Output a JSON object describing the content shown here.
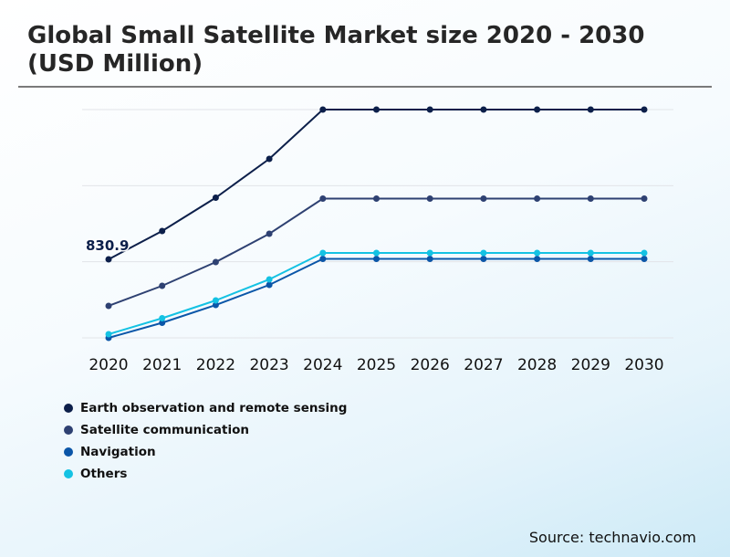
{
  "chart_data": {
    "type": "line",
    "title": "Global Small Satellite Market size 2020 - 2030 (USD Million)",
    "xlabel": "",
    "ylabel": "",
    "categories": [
      "2020",
      "2021",
      "2022",
      "2023",
      "2024",
      "2025",
      "2026",
      "2027",
      "2028",
      "2029",
      "2030"
    ],
    "ylim": [
      521.9,
      1420.2
    ],
    "grid": true,
    "legend_position": "bottom-left",
    "annotations": [
      {
        "series": 0,
        "index": 0,
        "label": "830.9"
      }
    ],
    "series": [
      {
        "name": "Earth observation and remote sensing",
        "color": "#0c1f4a",
        "values": [
          830.9,
          942.3,
          1073.4,
          1226.1,
          1420.2,
          1420.2,
          1420.2,
          1420.2,
          1420.2,
          1420.2,
          1420.2
        ]
      },
      {
        "name": "Satellite communication",
        "color": "#2e4172",
        "values": [
          647.7,
          726.7,
          820.1,
          931.5,
          1069.8,
          1069.8,
          1069.8,
          1069.8,
          1069.8,
          1069.8,
          1069.8
        ]
      },
      {
        "name": "Navigation",
        "color": "#0b56a8",
        "values": [
          521.9,
          581.2,
          651.2,
          730.3,
          832.7,
          832.7,
          832.7,
          832.7,
          832.7,
          832.7,
          832.7
        ]
      },
      {
        "name": "Others",
        "color": "#14c2e3",
        "values": [
          536.3,
          599.2,
          669.2,
          751.9,
          856.1,
          856.1,
          856.1,
          856.1,
          856.1,
          856.1,
          856.1
        ]
      }
    ]
  },
  "source": "Source: technavio.com"
}
